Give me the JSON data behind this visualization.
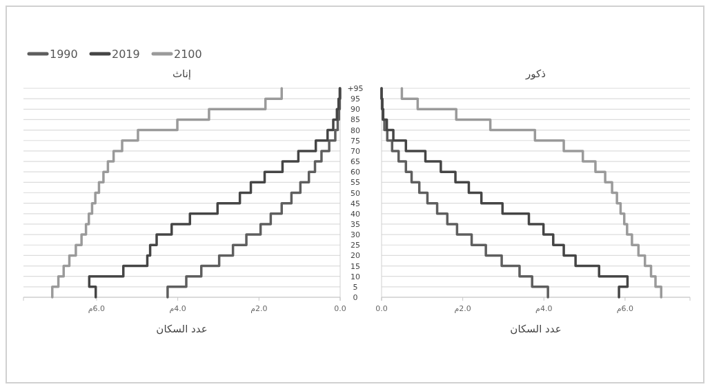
{
  "chart_data": [
    {
      "type": "step",
      "orientation": "horizontal",
      "title": "إناث",
      "xlabel": "عدد السكان",
      "legend": "top left",
      "grid": "y",
      "tick_labels": "xy",
      "x": [
        0,
        5,
        10,
        15,
        20,
        25,
        30,
        35,
        40,
        45,
        50,
        55,
        60,
        65,
        70,
        75,
        80,
        85,
        90,
        95,
        100
      ],
      "xlim": [
        7.8,
        0
      ],
      "xticks": [
        {
          "value": 6,
          "label": "6.0م"
        },
        {
          "value": 4,
          "label": "4.0م"
        },
        {
          "value": 2,
          "label": "2.0م"
        },
        {
          "value": 0,
          "label": "0.0"
        }
      ],
      "ylim": [
        0,
        100
      ],
      "yticks": [
        0,
        5,
        10,
        15,
        20,
        25,
        30,
        35,
        40,
        45,
        50,
        55,
        60,
        65,
        70,
        75,
        80,
        85,
        90,
        95,
        {
          "value": 100,
          "label": "95+"
        }
      ],
      "series": [
        {
          "name": "1990",
          "color": "#5e5e5e",
          "values": [
            4.25,
            3.79,
            3.42,
            2.98,
            2.64,
            2.31,
            1.96,
            1.71,
            1.44,
            1.2,
            0.98,
            0.77,
            0.62,
            0.46,
            0.27,
            0.12,
            0.06,
            0.03,
            0.01,
            0.0,
            0.0
          ]
        },
        {
          "name": "2019",
          "color": "#454545",
          "values": [
            6.02,
            6.18,
            5.34,
            4.75,
            4.68,
            4.52,
            4.15,
            3.7,
            3.02,
            2.47,
            2.2,
            1.86,
            1.42,
            1.03,
            0.6,
            0.31,
            0.17,
            0.08,
            0.04,
            0.01,
            0.01
          ]
        },
        {
          "name": "2100",
          "color": "#9a9a9a",
          "values": [
            7.09,
            6.94,
            6.81,
            6.67,
            6.51,
            6.37,
            6.26,
            6.19,
            6.11,
            6.03,
            5.94,
            5.83,
            5.72,
            5.58,
            5.37,
            4.98,
            4.01,
            3.23,
            1.84,
            1.44,
            1.44
          ]
        }
      ]
    },
    {
      "type": "step",
      "orientation": "horizontal",
      "title": "ذكور",
      "xlabel": "عدد السكان",
      "grid": "y",
      "tick_labels": "x",
      "x": [
        0,
        5,
        10,
        15,
        20,
        25,
        30,
        35,
        40,
        45,
        50,
        55,
        60,
        65,
        70,
        75,
        80,
        85,
        90,
        95,
        100
      ],
      "xlim": [
        0,
        7.6
      ],
      "xticks": [
        {
          "value": 0,
          "label": "0.0"
        },
        {
          "value": 2,
          "label": "2.0م"
        },
        {
          "value": 4,
          "label": "4.0م"
        },
        {
          "value": 6,
          "label": "6.0م"
        }
      ],
      "ylim": [
        0,
        100
      ],
      "yticks": [
        0,
        5,
        10,
        15,
        20,
        25,
        30,
        35,
        40,
        45,
        50,
        55,
        60,
        65,
        70,
        75,
        80,
        85,
        90,
        95,
        {
          "value": 100,
          "label": null
        }
      ],
      "series": [
        {
          "color": "#5e5e5e",
          "values": [
            4.1,
            3.71,
            3.4,
            2.96,
            2.57,
            2.22,
            1.86,
            1.62,
            1.37,
            1.13,
            0.93,
            0.74,
            0.6,
            0.42,
            0.26,
            0.14,
            0.07,
            0.03,
            0.01,
            0.0,
            0.0
          ]
        },
        {
          "color": "#454545",
          "values": [
            5.85,
            6.06,
            5.36,
            4.78,
            4.49,
            4.23,
            3.99,
            3.63,
            2.98,
            2.46,
            2.15,
            1.82,
            1.46,
            1.08,
            0.6,
            0.29,
            0.13,
            0.04,
            0.02,
            0.0,
            0.0
          ]
        },
        {
          "color": "#9a9a9a",
          "values": [
            6.89,
            6.75,
            6.64,
            6.49,
            6.33,
            6.17,
            6.05,
            5.98,
            5.89,
            5.8,
            5.68,
            5.51,
            5.27,
            4.96,
            4.49,
            3.78,
            2.68,
            1.84,
            0.89,
            0.5,
            0.5
          ]
        }
      ]
    }
  ]
}
